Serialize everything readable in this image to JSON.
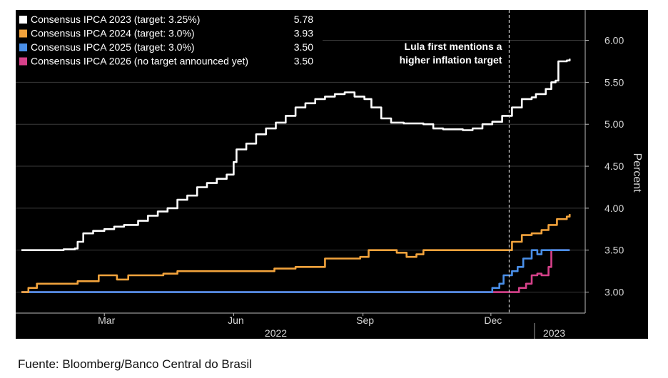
{
  "source_note": "Fuente: Bloomberg/Banco Central do Brasil",
  "chart_data": {
    "type": "line",
    "ylabel": "Percent",
    "ylim": [
      2.75,
      6.2
    ],
    "yticks": [
      "3.00",
      "3.50",
      "4.00",
      "4.50",
      "5.00",
      "5.50",
      "6.00"
    ],
    "ytick_values": [
      3.0,
      3.5,
      4.0,
      4.5,
      5.0,
      5.5,
      6.0
    ],
    "grid": true,
    "legend_position": "top-left",
    "xlim": [
      "2022-01-01",
      "2023-01-31"
    ],
    "x_month_ticks": [
      {
        "label": "Mar",
        "date": "2022-03-01"
      },
      {
        "label": "Jun",
        "date": "2022-06-01"
      },
      {
        "label": "Sep",
        "date": "2022-09-01"
      },
      {
        "label": "Dec",
        "date": "2022-12-01"
      }
    ],
    "x_year_labels": [
      {
        "label": "2022",
        "date": "2022-07-01"
      },
      {
        "label": "2023",
        "date": "2023-01-15"
      }
    ],
    "year_divider_date": "2023-01-01",
    "annotation": {
      "lines": [
        "Lula first mentions a",
        "higher inflation target"
      ],
      "date": "2022-12-14"
    },
    "series": [
      {
        "name": "Consensus IPCA 2023 (target: 3.25%)",
        "last_value": "5.78",
        "color": "#ffffff",
        "points": [
          [
            "2022-01-01",
            3.5
          ],
          [
            "2022-01-31",
            3.51
          ],
          [
            "2022-02-08",
            3.52
          ],
          [
            "2022-02-10",
            3.6
          ],
          [
            "2022-02-14",
            3.7
          ],
          [
            "2022-02-21",
            3.73
          ],
          [
            "2022-03-01",
            3.75
          ],
          [
            "2022-03-08",
            3.78
          ],
          [
            "2022-03-15",
            3.8
          ],
          [
            "2022-03-25",
            3.85
          ],
          [
            "2022-04-01",
            3.91
          ],
          [
            "2022-04-08",
            3.96
          ],
          [
            "2022-04-15",
            4.0
          ],
          [
            "2022-04-22",
            4.1
          ],
          [
            "2022-04-29",
            4.15
          ],
          [
            "2022-05-06",
            4.25
          ],
          [
            "2022-05-13",
            4.3
          ],
          [
            "2022-05-20",
            4.35
          ],
          [
            "2022-05-27",
            4.4
          ],
          [
            "2022-06-01",
            4.55
          ],
          [
            "2022-06-03",
            4.7
          ],
          [
            "2022-06-10",
            4.77
          ],
          [
            "2022-06-17",
            4.88
          ],
          [
            "2022-06-24",
            4.95
          ],
          [
            "2022-07-01",
            5.02
          ],
          [
            "2022-07-08",
            5.1
          ],
          [
            "2022-07-15",
            5.2
          ],
          [
            "2022-07-22",
            5.25
          ],
          [
            "2022-07-29",
            5.3
          ],
          [
            "2022-08-05",
            5.33
          ],
          [
            "2022-08-12",
            5.36
          ],
          [
            "2022-08-19",
            5.38
          ],
          [
            "2022-08-26",
            5.33
          ],
          [
            "2022-09-02",
            5.3
          ],
          [
            "2022-09-07",
            5.2
          ],
          [
            "2022-09-14",
            5.07
          ],
          [
            "2022-09-21",
            5.02
          ],
          [
            "2022-09-30",
            5.01
          ],
          [
            "2022-10-14",
            5.0
          ],
          [
            "2022-10-21",
            4.95
          ],
          [
            "2022-10-28",
            4.94
          ],
          [
            "2022-11-11",
            4.93
          ],
          [
            "2022-11-18",
            4.95
          ],
          [
            "2022-11-25",
            5.0
          ],
          [
            "2022-12-02",
            5.03
          ],
          [
            "2022-12-09",
            5.1
          ],
          [
            "2022-12-16",
            5.2
          ],
          [
            "2022-12-23",
            5.3
          ],
          [
            "2022-12-30",
            5.32
          ],
          [
            "2023-01-02",
            5.36
          ],
          [
            "2023-01-09",
            5.42
          ],
          [
            "2023-01-13",
            5.5
          ],
          [
            "2023-01-16",
            5.52
          ],
          [
            "2023-01-18",
            5.75
          ],
          [
            "2023-01-24",
            5.76
          ],
          [
            "2023-01-26",
            5.78
          ]
        ]
      },
      {
        "name": "Consensus IPCA 2024 (target: 3.0%)",
        "last_value": "3.93",
        "color": "#f2a33c",
        "points": [
          [
            "2022-01-01",
            3.0
          ],
          [
            "2022-01-06",
            3.05
          ],
          [
            "2022-01-12",
            3.1
          ],
          [
            "2022-02-10",
            3.13
          ],
          [
            "2022-02-25",
            3.2
          ],
          [
            "2022-03-10",
            3.15
          ],
          [
            "2022-03-18",
            3.2
          ],
          [
            "2022-04-12",
            3.22
          ],
          [
            "2022-04-22",
            3.25
          ],
          [
            "2022-06-01",
            3.25
          ],
          [
            "2022-06-30",
            3.28
          ],
          [
            "2022-07-15",
            3.3
          ],
          [
            "2022-07-30",
            3.3
          ],
          [
            "2022-08-05",
            3.4
          ],
          [
            "2022-08-30",
            3.42
          ],
          [
            "2022-09-05",
            3.5
          ],
          [
            "2022-09-25",
            3.47
          ],
          [
            "2022-10-02",
            3.42
          ],
          [
            "2022-10-09",
            3.45
          ],
          [
            "2022-10-14",
            3.5
          ],
          [
            "2022-12-10",
            3.5
          ],
          [
            "2022-12-16",
            3.6
          ],
          [
            "2022-12-23",
            3.68
          ],
          [
            "2022-12-30",
            3.7
          ],
          [
            "2023-01-06",
            3.74
          ],
          [
            "2023-01-11",
            3.8
          ],
          [
            "2023-01-17",
            3.87
          ],
          [
            "2023-01-24",
            3.9
          ],
          [
            "2023-01-26",
            3.93
          ]
        ]
      },
      {
        "name": "Consensus IPCA 2025 (target: 3.0%)",
        "last_value": "3.50",
        "color": "#4a8fe8",
        "points": [
          [
            "2022-01-01",
            3.0
          ],
          [
            "2022-11-30",
            3.0
          ],
          [
            "2022-12-02",
            3.05
          ],
          [
            "2022-12-07",
            3.1
          ],
          [
            "2022-12-10",
            3.2
          ],
          [
            "2022-12-16",
            3.25
          ],
          [
            "2022-12-20",
            3.3
          ],
          [
            "2022-12-24",
            3.4
          ],
          [
            "2022-12-30",
            3.5
          ],
          [
            "2023-01-03",
            3.45
          ],
          [
            "2023-01-06",
            3.5
          ],
          [
            "2023-01-26",
            3.5
          ]
        ]
      },
      {
        "name": "Consensus IPCA 2026 (no target announced yet)",
        "last_value": "3.50",
        "color": "#d6418a",
        "points": [
          [
            "2022-01-01",
            3.0
          ],
          [
            "2022-12-14",
            3.0
          ],
          [
            "2022-12-21",
            3.05
          ],
          [
            "2022-12-26",
            3.1
          ],
          [
            "2022-12-30",
            3.2
          ],
          [
            "2023-01-03",
            3.22
          ],
          [
            "2023-01-06",
            3.2
          ],
          [
            "2023-01-11",
            3.3
          ],
          [
            "2023-01-13",
            3.5
          ],
          [
            "2023-01-26",
            3.5
          ]
        ]
      }
    ]
  }
}
